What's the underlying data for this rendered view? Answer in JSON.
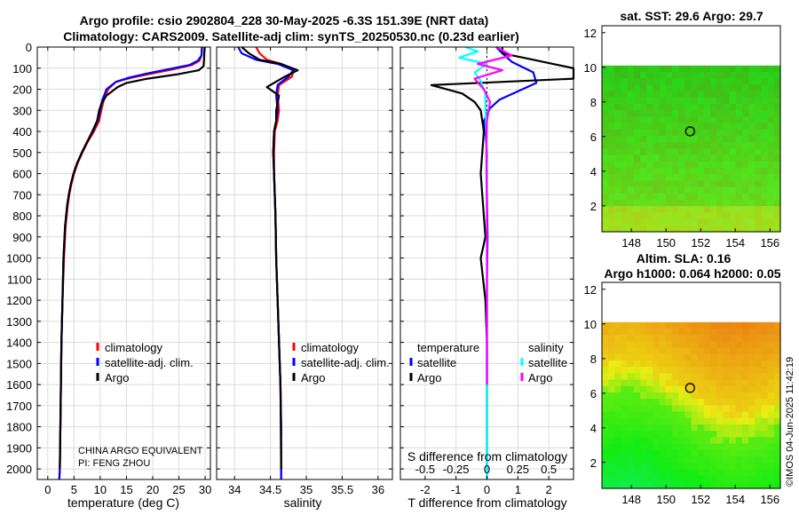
{
  "figure": {
    "title_line1": "Argo profile: csio 2902804_228 30-May-2025 -6.3S 151.39E (NRT data)",
    "title_line2": "Climatology: CARS2009. Satellite-adj clim: synTS_20250530.nc (0.23d earlier)",
    "watermark": "©IMOS 04-Jun-2025 11:42:19",
    "credit_line1": "CHINA ARGO EQUIVALENT",
    "credit_line2": "PI: FENG ZHOU"
  },
  "colors": {
    "climatology": "#ff0000",
    "satellite": "#0000ff",
    "argo": "#000000",
    "sat_salinity": "#00ffff",
    "argo_salinity": "#ff00ff"
  },
  "chart_data": [
    {
      "type": "line",
      "name": "temperature",
      "xlabel": "temperature (deg C)",
      "xlim": [
        -2,
        31
      ],
      "ylim": [
        0,
        2050
      ],
      "xticks": [
        "0",
        "5",
        "10",
        "15",
        "20",
        "25",
        "30"
      ],
      "xtick_values": [
        0,
        5,
        10,
        15,
        20,
        25,
        30
      ],
      "yticks": [
        "0",
        "100",
        "200",
        "300",
        "400",
        "500",
        "600",
        "700",
        "800",
        "900",
        "1000",
        "1100",
        "1200",
        "1300",
        "1400",
        "1500",
        "1600",
        "1700",
        "1800",
        "1900",
        "2000"
      ],
      "ytick_values": [
        0,
        100,
        200,
        300,
        400,
        500,
        600,
        700,
        800,
        900,
        1000,
        1100,
        1200,
        1300,
        1400,
        1500,
        1600,
        1700,
        1800,
        1900,
        2000
      ],
      "legend": [
        "climatology",
        "satellite-adj. clim.",
        "Argo"
      ],
      "series": [
        {
          "name": "climatology",
          "color": "#ff0000",
          "x": [
            29.4,
            29.3,
            28.9,
            27.5,
            24,
            20,
            16,
            13,
            11.5,
            10.7,
            10.2,
            9.8,
            8.8,
            7.6,
            6.6,
            5.7,
            5.0,
            4.5,
            4.1,
            3.8,
            3.4,
            3.1,
            2.8,
            2.6,
            2.5,
            2.4,
            2.3,
            2.2
          ],
          "y": [
            0,
            40,
            65,
            85,
            105,
            125,
            145,
            165,
            200,
            250,
            300,
            350,
            400,
            450,
            500,
            550,
            600,
            650,
            700,
            750,
            850,
            1000,
            1200,
            1400,
            1600,
            1800,
            2000,
            2050
          ]
        },
        {
          "name": "satellite-adj. clim.",
          "color": "#0000ff",
          "x": [
            29.4,
            29.3,
            28.6,
            27,
            23,
            19,
            15.5,
            13,
            11.2,
            10.4,
            10.0,
            9.5,
            8.6,
            7.5,
            6.5,
            5.6,
            4.9,
            4.4,
            4.0,
            3.7,
            3.3,
            3.0,
            2.8,
            2.6,
            2.5,
            2.4,
            2.3,
            2.2
          ],
          "y": [
            0,
            40,
            65,
            85,
            105,
            125,
            145,
            165,
            200,
            250,
            300,
            350,
            400,
            450,
            500,
            550,
            600,
            650,
            700,
            750,
            850,
            1000,
            1200,
            1400,
            1600,
            1800,
            2000,
            2050
          ]
        },
        {
          "name": "Argo",
          "color": "#000000",
          "x": [
            29.9,
            29.8,
            29.7,
            28.8,
            24.5,
            19,
            15,
            13.3,
            11.2,
            10.2,
            9.8,
            9.4,
            8.5,
            7.5,
            6.5,
            5.6,
            4.9,
            4.4,
            4.0,
            3.7,
            3.3,
            3.0,
            2.8,
            2.6,
            2.5,
            2.4,
            2.3
          ],
          "y": [
            0,
            50,
            90,
            110,
            130,
            150,
            170,
            190,
            230,
            270,
            300,
            350,
            400,
            450,
            500,
            550,
            600,
            650,
            700,
            750,
            850,
            1000,
            1200,
            1400,
            1600,
            1800,
            2000
          ]
        }
      ]
    },
    {
      "type": "line",
      "name": "salinity",
      "xlabel": "salinity",
      "xlim": [
        33.75,
        36.2
      ],
      "ylim": [
        0,
        2050
      ],
      "xticks": [
        "34",
        "34.5",
        "35",
        "35.5",
        "36"
      ],
      "xtick_values": [
        34,
        34.5,
        35,
        35.5,
        36
      ],
      "legend": [
        "climatology",
        "satellite-adj. clim.",
        "Argo"
      ],
      "series": [
        {
          "name": "climatology",
          "color": "#ff0000",
          "x": [
            34.3,
            34.35,
            34.45,
            34.65,
            34.82,
            34.8,
            34.62,
            34.6,
            34.62,
            34.6,
            34.56,
            34.55,
            34.55,
            34.56,
            34.57,
            34.58,
            34.6,
            34.62,
            34.64,
            34.65,
            34.65
          ],
          "y": [
            0,
            30,
            60,
            80,
            110,
            140,
            180,
            230,
            300,
            350,
            400,
            500,
            600,
            700,
            800,
            1000,
            1200,
            1400,
            1600,
            1800,
            2050
          ]
        },
        {
          "name": "satellite-adj. clim.",
          "color": "#0000ff",
          "x": [
            34.05,
            34.1,
            34.3,
            34.6,
            34.82,
            34.75,
            34.6,
            34.58,
            34.6,
            34.58,
            34.55,
            34.54,
            34.55,
            34.56,
            34.57,
            34.58,
            34.6,
            34.62,
            34.64,
            34.65,
            34.65
          ],
          "y": [
            0,
            30,
            60,
            80,
            110,
            140,
            180,
            230,
            300,
            350,
            400,
            500,
            600,
            700,
            800,
            1000,
            1200,
            1400,
            1600,
            1800,
            2050
          ]
        },
        {
          "name": "Argo",
          "color": "#000000",
          "x": [
            34.1,
            34.2,
            34.35,
            34.65,
            34.88,
            34.7,
            34.45,
            34.62,
            34.58,
            34.58,
            34.55,
            34.54,
            34.55,
            34.56,
            34.57,
            34.58,
            34.6,
            34.62,
            34.64,
            34.65
          ],
          "y": [
            0,
            30,
            60,
            80,
            110,
            140,
            190,
            230,
            300,
            350,
            400,
            500,
            600,
            700,
            800,
            1000,
            1200,
            1400,
            1600,
            2000
          ]
        }
      ]
    },
    {
      "type": "line",
      "name": "difference",
      "xlabel": "T difference from climatology",
      "xlabel_top": "S difference from climatology",
      "xlim": [
        -2.8,
        2.8
      ],
      "ylim": [
        0,
        2050
      ],
      "xticks": [
        "-2",
        "-1",
        "0",
        "1",
        "2"
      ],
      "xtick_values": [
        -2,
        -1,
        0,
        1,
        2
      ],
      "sticks": [
        "-0.5",
        "-0.25",
        "0",
        "0.25",
        "0.5"
      ],
      "stick_values": [
        -2,
        -1,
        0,
        1,
        2
      ],
      "legend_header_t": "temperature",
      "legend_header_s": "salinity",
      "legend_t": [
        "satellite",
        "Argo"
      ],
      "legend_s": [
        "satellite",
        "Argo"
      ],
      "series": [
        {
          "name": "T satellite",
          "color": "#0000ff",
          "x": [
            0.3,
            0.5,
            0.8,
            1.5,
            1.6,
            1.0,
            0.4,
            0.1,
            -0.1,
            -0.05,
            0.0,
            0.0,
            0.02,
            0.0,
            0.0,
            0.0,
            0.0,
            0.0,
            0.0
          ],
          "y": [
            0,
            30,
            70,
            120,
            170,
            210,
            250,
            290,
            350,
            400,
            500,
            700,
            900,
            1100,
            1300,
            1500,
            1700,
            1900,
            2050
          ]
        },
        {
          "name": "T Argo",
          "color": "#000000",
          "x": [
            0.5,
            0.5,
            1.5,
            2.8,
            2.8,
            -1.8,
            -0.8,
            -0.4,
            -0.2,
            -0.1,
            -0.2,
            -0.1,
            -0.05,
            -0.2,
            -0.05,
            0.0,
            0.0,
            0.0,
            0.0,
            0.0
          ],
          "y": [
            0,
            30,
            60,
            100,
            150,
            180,
            220,
            260,
            300,
            400,
            600,
            800,
            900,
            1000,
            1200,
            1400,
            1600,
            1800,
            1900,
            2000
          ]
        },
        {
          "name": "S satellite",
          "color": "#00ffff",
          "x": [
            -0.7,
            -0.3,
            -0.9,
            0.0,
            -0.4,
            -0.2,
            -0.05,
            -0.05,
            -0.02,
            0.0,
            0.0,
            0.0,
            0.0
          ],
          "y": [
            0,
            20,
            50,
            80,
            120,
            160,
            220,
            300,
            400,
            600,
            900,
            1500,
            2050
          ]
        },
        {
          "name": "S Argo",
          "color": "#ff00ff",
          "x": [
            0.3,
            0.8,
            -0.3,
            0.5,
            -0.4,
            -0.1,
            0.1,
            0.0,
            -0.02,
            0.0,
            0.0,
            0.0
          ],
          "y": [
            0,
            40,
            80,
            110,
            150,
            200,
            260,
            350,
            500,
            800,
            1200,
            1600
          ]
        }
      ]
    },
    {
      "type": "heatmap",
      "name": "sst-map",
      "title": "sat. SST: 29.6 Argo: 29.7",
      "xlim": [
        146.3,
        156.6
      ],
      "ylim": [
        0.5,
        12.4
      ],
      "data_top_lat": 10.1,
      "xticks": [
        "148",
        "150",
        "152",
        "154",
        "156"
      ],
      "xtick_values": [
        148,
        150,
        152,
        154,
        156
      ],
      "yticks": [
        "2",
        "4",
        "6",
        "8",
        "10",
        "12"
      ],
      "ytick_values": [
        2,
        4,
        6,
        8,
        10,
        12
      ],
      "marker": {
        "lon": 151.39,
        "lat": 6.3
      }
    },
    {
      "type": "heatmap",
      "name": "sla-map",
      "title_line1": "Altim. SLA: 0.16",
      "title_line2": "Argo h1000: 0.064 h2000: 0.05",
      "xlim": [
        146.3,
        156.6
      ],
      "ylim": [
        0.5,
        12.4
      ],
      "data_top_lat": 10.1,
      "xticks": [
        "148",
        "150",
        "152",
        "154",
        "156"
      ],
      "xtick_values": [
        148,
        150,
        152,
        154,
        156
      ],
      "yticks": [
        "2",
        "4",
        "6",
        "8",
        "10",
        "12"
      ],
      "ytick_values": [
        2,
        4,
        6,
        8,
        10,
        12
      ],
      "marker": {
        "lon": 151.39,
        "lat": 6.3
      }
    }
  ]
}
